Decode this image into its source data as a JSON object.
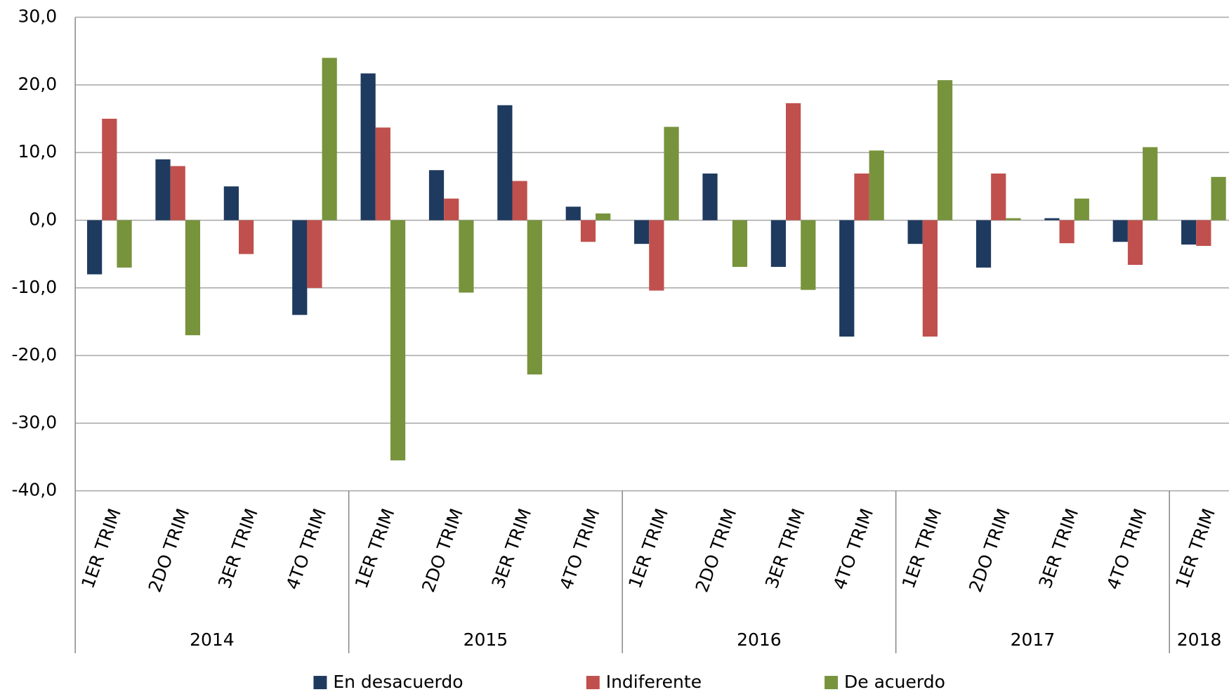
{
  "chart_data": {
    "type": "bar",
    "categories": [
      "1ER TRIM",
      "2DO TRIM",
      "3ER TRIM",
      "4TO TRIM",
      "1ER TRIM",
      "2DO TRIM",
      "3ER TRIM",
      "4TO TRIM",
      "1ER TRIM",
      "2DO TRIM",
      "3ER TRIM",
      "4TO TRIM",
      "1ER TRIM",
      "2DO TRIM",
      "3ER TRIM",
      "4TO TRIM",
      "1ER TRIM"
    ],
    "groups": [
      {
        "name": "2014",
        "count": 4
      },
      {
        "name": "2015",
        "count": 4
      },
      {
        "name": "2016",
        "count": 4
      },
      {
        "name": "2017",
        "count": 4
      },
      {
        "name": "2018",
        "count": 1
      }
    ],
    "series": [
      {
        "name": "En desacuerdo",
        "color": "#1f3a5f",
        "values": [
          -8,
          9,
          5,
          -14,
          21.7,
          7.4,
          17,
          2.0,
          -3.5,
          6.9,
          -6.9,
          -17.2,
          -3.5,
          -7.0,
          0.3,
          -3.2,
          -3.6
        ]
      },
      {
        "name": "Indiferente",
        "color": "#c0504d",
        "values": [
          15,
          8,
          -5,
          -10,
          13.7,
          3.2,
          5.8,
          -3.2,
          -10.4,
          0,
          17.3,
          6.9,
          -17.2,
          6.9,
          -3.4,
          -6.6,
          -3.8
        ]
      },
      {
        "name": "De acuerdo",
        "color": "#77933c",
        "values": [
          -7,
          -17,
          0,
          24,
          -35.5,
          -10.7,
          -22.8,
          1.0,
          13.8,
          -6.9,
          -10.3,
          10.3,
          20.7,
          0.3,
          3.2,
          10.8,
          6.4
        ]
      }
    ],
    "ylim": [
      -40,
      30
    ],
    "yticks": [
      {
        "value": -40,
        "label": "-40,0"
      },
      {
        "value": -30,
        "label": "-30,0"
      },
      {
        "value": -20,
        "label": "-20,0"
      },
      {
        "value": -10,
        "label": "-10,0"
      },
      {
        "value": 0,
        "label": "0,0"
      },
      {
        "value": 10,
        "label": "10,0"
      },
      {
        "value": 20,
        "label": "20,0"
      },
      {
        "value": 30,
        "label": "30,0"
      }
    ],
    "grid": true
  }
}
